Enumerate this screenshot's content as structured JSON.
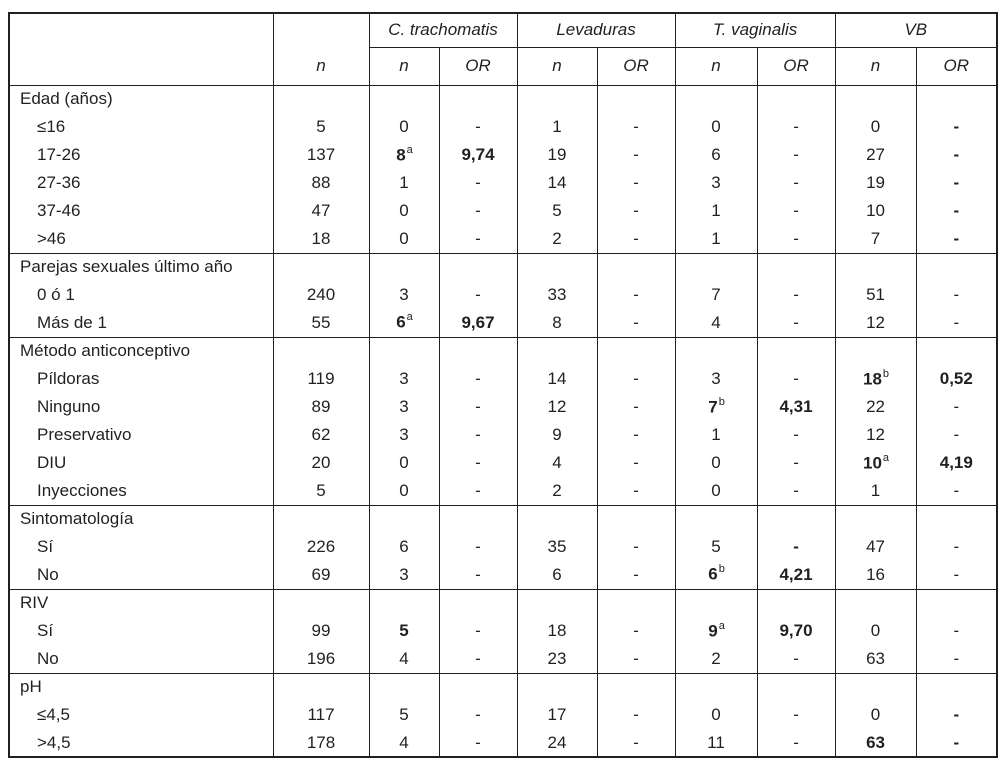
{
  "page": {
    "background": "#ffffff",
    "text_color": "#231f20"
  },
  "table": {
    "header": {
      "corner_label": "",
      "total_n": "n",
      "groups": [
        "C. trachomatis",
        "Levaduras",
        "T. vaginalis",
        "VB"
      ],
      "sub_n": "n",
      "sub_or": "OR"
    },
    "column_keys": [
      "ct_n",
      "ct_or",
      "lev_n",
      "lev_or",
      "tv_n",
      "tv_or",
      "vb_n",
      "vb_or"
    ],
    "sections": [
      {
        "title": "Edad (años)",
        "rows": [
          {
            "label": "≤16",
            "n": "5",
            "cells": [
              {
                "v": "0"
              },
              {
                "v": "-"
              },
              {
                "v": "1"
              },
              {
                "v": "-"
              },
              {
                "v": "0"
              },
              {
                "v": "-"
              },
              {
                "v": "0"
              },
              {
                "v": "-",
                "b": true
              }
            ]
          },
          {
            "label": "17-26",
            "n": "137",
            "cells": [
              {
                "v": "8",
                "sup": "a",
                "b": true
              },
              {
                "v": "9,74",
                "b": true
              },
              {
                "v": "19"
              },
              {
                "v": "-"
              },
              {
                "v": "6"
              },
              {
                "v": "-"
              },
              {
                "v": "27"
              },
              {
                "v": "-",
                "b": true
              }
            ]
          },
          {
            "label": "27-36",
            "n": "88",
            "cells": [
              {
                "v": "1"
              },
              {
                "v": "-"
              },
              {
                "v": "14"
              },
              {
                "v": "-"
              },
              {
                "v": "3"
              },
              {
                "v": "-"
              },
              {
                "v": "19"
              },
              {
                "v": "-",
                "b": true
              }
            ]
          },
          {
            "label": "37-46",
            "n": "47",
            "cells": [
              {
                "v": "0"
              },
              {
                "v": "-"
              },
              {
                "v": "5"
              },
              {
                "v": "-"
              },
              {
                "v": "1"
              },
              {
                "v": "-"
              },
              {
                "v": "10"
              },
              {
                "v": "-",
                "b": true
              }
            ]
          },
          {
            "label": ">46",
            "n": "18",
            "cells": [
              {
                "v": "0"
              },
              {
                "v": "-"
              },
              {
                "v": "2"
              },
              {
                "v": "-"
              },
              {
                "v": "1"
              },
              {
                "v": "-"
              },
              {
                "v": "7"
              },
              {
                "v": "-",
                "b": true
              }
            ]
          }
        ]
      },
      {
        "title": "Parejas sexuales último año",
        "rows": [
          {
            "label": "0 ó 1",
            "n": "240",
            "cells": [
              {
                "v": "3"
              },
              {
                "v": "-"
              },
              {
                "v": "33"
              },
              {
                "v": "-"
              },
              {
                "v": "7"
              },
              {
                "v": "-"
              },
              {
                "v": "51"
              },
              {
                "v": "-"
              }
            ]
          },
          {
            "label": "Más de 1",
            "n": "55",
            "cells": [
              {
                "v": "6",
                "sup": "a",
                "b": true
              },
              {
                "v": "9,67",
                "b": true
              },
              {
                "v": "8"
              },
              {
                "v": "-"
              },
              {
                "v": "4"
              },
              {
                "v": "-"
              },
              {
                "v": "12"
              },
              {
                "v": "-"
              }
            ]
          }
        ]
      },
      {
        "title": "Método anticonceptivo",
        "rows": [
          {
            "label": "Píldoras",
            "n": "119",
            "cells": [
              {
                "v": "3"
              },
              {
                "v": "-"
              },
              {
                "v": "14"
              },
              {
                "v": "-"
              },
              {
                "v": "3"
              },
              {
                "v": "-"
              },
              {
                "v": "18",
                "sup": "b",
                "b": true
              },
              {
                "v": "0,52",
                "b": true
              }
            ]
          },
          {
            "label": "Ninguno",
            "n": "89",
            "cells": [
              {
                "v": "3"
              },
              {
                "v": "-"
              },
              {
                "v": "12"
              },
              {
                "v": "-"
              },
              {
                "v": "7",
                "sup": "b",
                "b": true
              },
              {
                "v": "4,31",
                "b": true
              },
              {
                "v": "22"
              },
              {
                "v": "-"
              }
            ]
          },
          {
            "label": "Preservativo",
            "n": "62",
            "cells": [
              {
                "v": "3"
              },
              {
                "v": "-"
              },
              {
                "v": "9"
              },
              {
                "v": "-"
              },
              {
                "v": "1"
              },
              {
                "v": "-"
              },
              {
                "v": "12"
              },
              {
                "v": "-"
              }
            ]
          },
          {
            "label": "DIU",
            "n": "20",
            "cells": [
              {
                "v": "0"
              },
              {
                "v": "-"
              },
              {
                "v": "4"
              },
              {
                "v": "-"
              },
              {
                "v": "0"
              },
              {
                "v": "-"
              },
              {
                "v": "10",
                "sup": "a",
                "b": true
              },
              {
                "v": "4,19",
                "b": true
              }
            ]
          },
          {
            "label": "Inyecciones",
            "n": "5",
            "cells": [
              {
                "v": "0"
              },
              {
                "v": "-"
              },
              {
                "v": "2"
              },
              {
                "v": "-"
              },
              {
                "v": "0"
              },
              {
                "v": "-"
              },
              {
                "v": "1"
              },
              {
                "v": "-"
              }
            ]
          }
        ]
      },
      {
        "title": "Sintomatología",
        "rows": [
          {
            "label": "Sí",
            "n": "226",
            "cells": [
              {
                "v": "6"
              },
              {
                "v": "-"
              },
              {
                "v": "35"
              },
              {
                "v": "-"
              },
              {
                "v": "5"
              },
              {
                "v": "-",
                "b": true
              },
              {
                "v": "47"
              },
              {
                "v": "-"
              }
            ]
          },
          {
            "label": "No",
            "n": "69",
            "cells": [
              {
                "v": "3"
              },
              {
                "v": "-"
              },
              {
                "v": "6"
              },
              {
                "v": "-"
              },
              {
                "v": "6",
                "sup": "b",
                "b": true
              },
              {
                "v": "4,21",
                "b": true
              },
              {
                "v": "16"
              },
              {
                "v": "-"
              }
            ]
          }
        ]
      },
      {
        "title": "RIV",
        "rows": [
          {
            "label": "Sí",
            "n": "99",
            "cells": [
              {
                "v": "5",
                "b": true
              },
              {
                "v": "-"
              },
              {
                "v": "18"
              },
              {
                "v": "-"
              },
              {
                "v": "9",
                "sup": "a",
                "b": true
              },
              {
                "v": "9,70",
                "b": true
              },
              {
                "v": "0"
              },
              {
                "v": "-"
              }
            ]
          },
          {
            "label": "No",
            "n": "196",
            "cells": [
              {
                "v": "4"
              },
              {
                "v": "-"
              },
              {
                "v": "23"
              },
              {
                "v": "-"
              },
              {
                "v": "2"
              },
              {
                "v": "-"
              },
              {
                "v": "63"
              },
              {
                "v": "-"
              }
            ]
          }
        ]
      },
      {
        "title": "pH",
        "rows": [
          {
            "label": "≤4,5",
            "n": "117",
            "cells": [
              {
                "v": "5"
              },
              {
                "v": "-"
              },
              {
                "v": "17"
              },
              {
                "v": "-"
              },
              {
                "v": "0"
              },
              {
                "v": "-"
              },
              {
                "v": "0"
              },
              {
                "v": "-",
                "b": true
              }
            ]
          },
          {
            "label": ">4,5",
            "n": "178",
            "cells": [
              {
                "v": "4"
              },
              {
                "v": "-"
              },
              {
                "v": "24"
              },
              {
                "v": "-"
              },
              {
                "v": "11"
              },
              {
                "v": "-"
              },
              {
                "v": "63",
                "b": true
              },
              {
                "v": "-",
                "b": true
              }
            ]
          }
        ]
      }
    ]
  }
}
